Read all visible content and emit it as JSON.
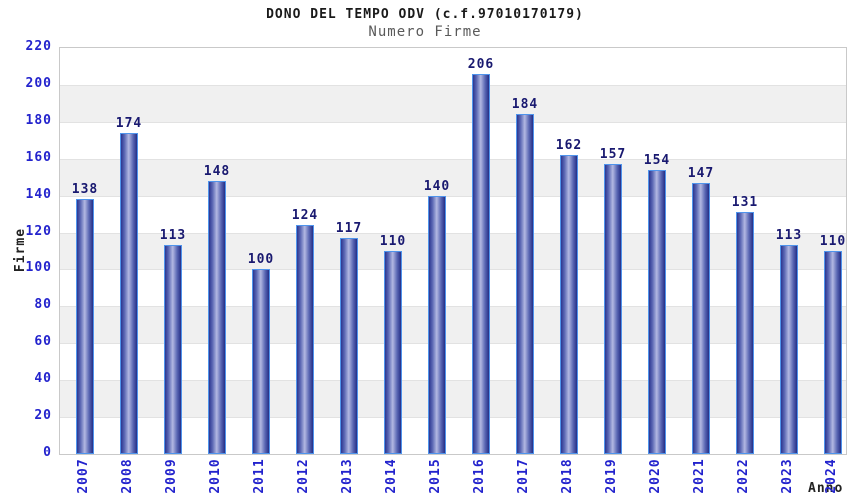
{
  "chart_data": {
    "type": "bar",
    "title": "DONO DEL TEMPO ODV (c.f.97010170179)",
    "subtitle": "Numero Firme",
    "xlabel": "Anno",
    "ylabel": "Firme",
    "categories": [
      "2007",
      "2008",
      "2009",
      "2010",
      "2011",
      "2012",
      "2013",
      "2014",
      "2015",
      "2016",
      "2017",
      "2018",
      "2019",
      "2020",
      "2021",
      "2022",
      "2023",
      "2024"
    ],
    "values": [
      138,
      174,
      113,
      148,
      100,
      124,
      117,
      110,
      140,
      206,
      184,
      162,
      157,
      154,
      147,
      131,
      113,
      110
    ],
    "ylim": [
      0,
      220
    ],
    "ytick_step": 20,
    "yticks": [
      0,
      20,
      40,
      60,
      80,
      100,
      120,
      140,
      160,
      180,
      200,
      220
    ],
    "grid": "alternating-horizontal-bands",
    "legend_position": "none",
    "bar_value_labels": true
  },
  "colors": {
    "bar_border": "#4f94ec",
    "bar_gradient_dark": "#2c3690",
    "bar_gradient_light": "#b2b8e2",
    "value_label": "#191970",
    "tick_label": "#2323cd",
    "band_gray": "#f0f0f0",
    "band_white": "#ffffff",
    "plot_border": "#c9c9c9",
    "title": "#1a1a1a",
    "subtitle": "#5a5a5a",
    "axis_title": "#222222"
  }
}
